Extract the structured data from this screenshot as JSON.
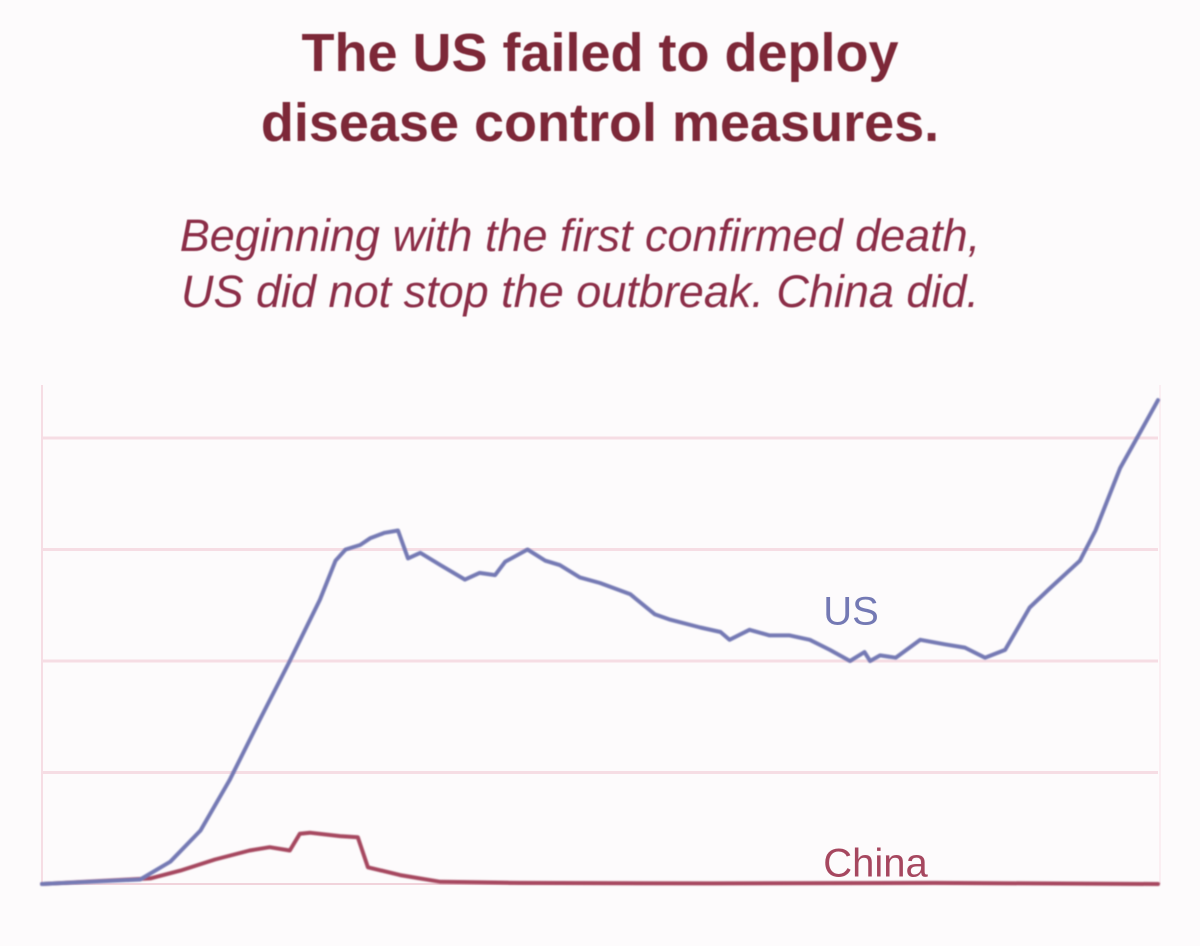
{
  "title_lines": [
    "The US failed to deploy",
    "disease control measures."
  ],
  "subtitle_lines": [
    "Beginning with the first confirmed death,",
    "US did not stop the outbreak. China did."
  ],
  "colors": {
    "title": "#7d2838",
    "subtitle": "#8c2e48",
    "us": "#7479b4",
    "china": "#a6475f",
    "grid": "#f6dde4"
  },
  "chart_data": {
    "type": "line",
    "title": "The US failed to deploy disease control measures.",
    "subtitle": "Beginning with the first confirmed death, US did not stop the outbreak. China did.",
    "xlabel": "",
    "ylabel": "",
    "x_units": "relative days since first confirmed death (0-1)",
    "y_units": "relative (gridline units, unlabeled)",
    "ylim": [
      0,
      4.4
    ],
    "xlim": [
      0,
      1
    ],
    "grid": true,
    "gridlines_y": [
      1,
      2,
      3,
      4
    ],
    "legend": "inline labels",
    "series": [
      {
        "name": "US",
        "label": "US",
        "label_at": [
          0.7,
          2.3
        ],
        "x": [
          0,
          0.088,
          0.115,
          0.142,
          0.168,
          0.195,
          0.222,
          0.249,
          0.263,
          0.272,
          0.285,
          0.294,
          0.307,
          0.319,
          0.328,
          0.339,
          0.357,
          0.379,
          0.392,
          0.406,
          0.415,
          0.435,
          0.451,
          0.464,
          0.482,
          0.5,
          0.527,
          0.549,
          0.563,
          0.59,
          0.608,
          0.616,
          0.634,
          0.652,
          0.67,
          0.688,
          0.706,
          0.724,
          0.737,
          0.742,
          0.751,
          0.765,
          0.787,
          0.809,
          0.827,
          0.845,
          0.863,
          0.885,
          0.903,
          0.93,
          0.944,
          0.966,
          0.984,
          1.0
        ],
        "y": [
          0,
          0.04,
          0.2,
          0.48,
          0.93,
          1.47,
          2.0,
          2.55,
          2.9,
          3.0,
          3.04,
          3.1,
          3.15,
          3.17,
          2.92,
          2.97,
          2.86,
          2.73,
          2.79,
          2.77,
          2.89,
          3.0,
          2.9,
          2.86,
          2.75,
          2.7,
          2.6,
          2.42,
          2.37,
          2.3,
          2.26,
          2.19,
          2.28,
          2.23,
          2.23,
          2.19,
          2.1,
          2.0,
          2.08,
          2.0,
          2.05,
          2.03,
          2.19,
          2.15,
          2.12,
          2.03,
          2.1,
          2.48,
          2.65,
          2.9,
          3.17,
          3.73,
          4.05,
          4.34
        ]
      },
      {
        "name": "China",
        "label": "China",
        "label_at": [
          0.7,
          0.04
        ],
        "x": [
          0,
          0.097,
          0.124,
          0.155,
          0.186,
          0.204,
          0.222,
          0.231,
          0.24,
          0.267,
          0.283,
          0.292,
          0.321,
          0.357,
          0.428,
          0.6,
          0.8,
          1.0
        ],
        "y": [
          0,
          0.05,
          0.12,
          0.22,
          0.3,
          0.33,
          0.3,
          0.45,
          0.46,
          0.43,
          0.42,
          0.15,
          0.08,
          0.02,
          0.01,
          0.005,
          0.01,
          0.0
        ]
      }
    ]
  }
}
